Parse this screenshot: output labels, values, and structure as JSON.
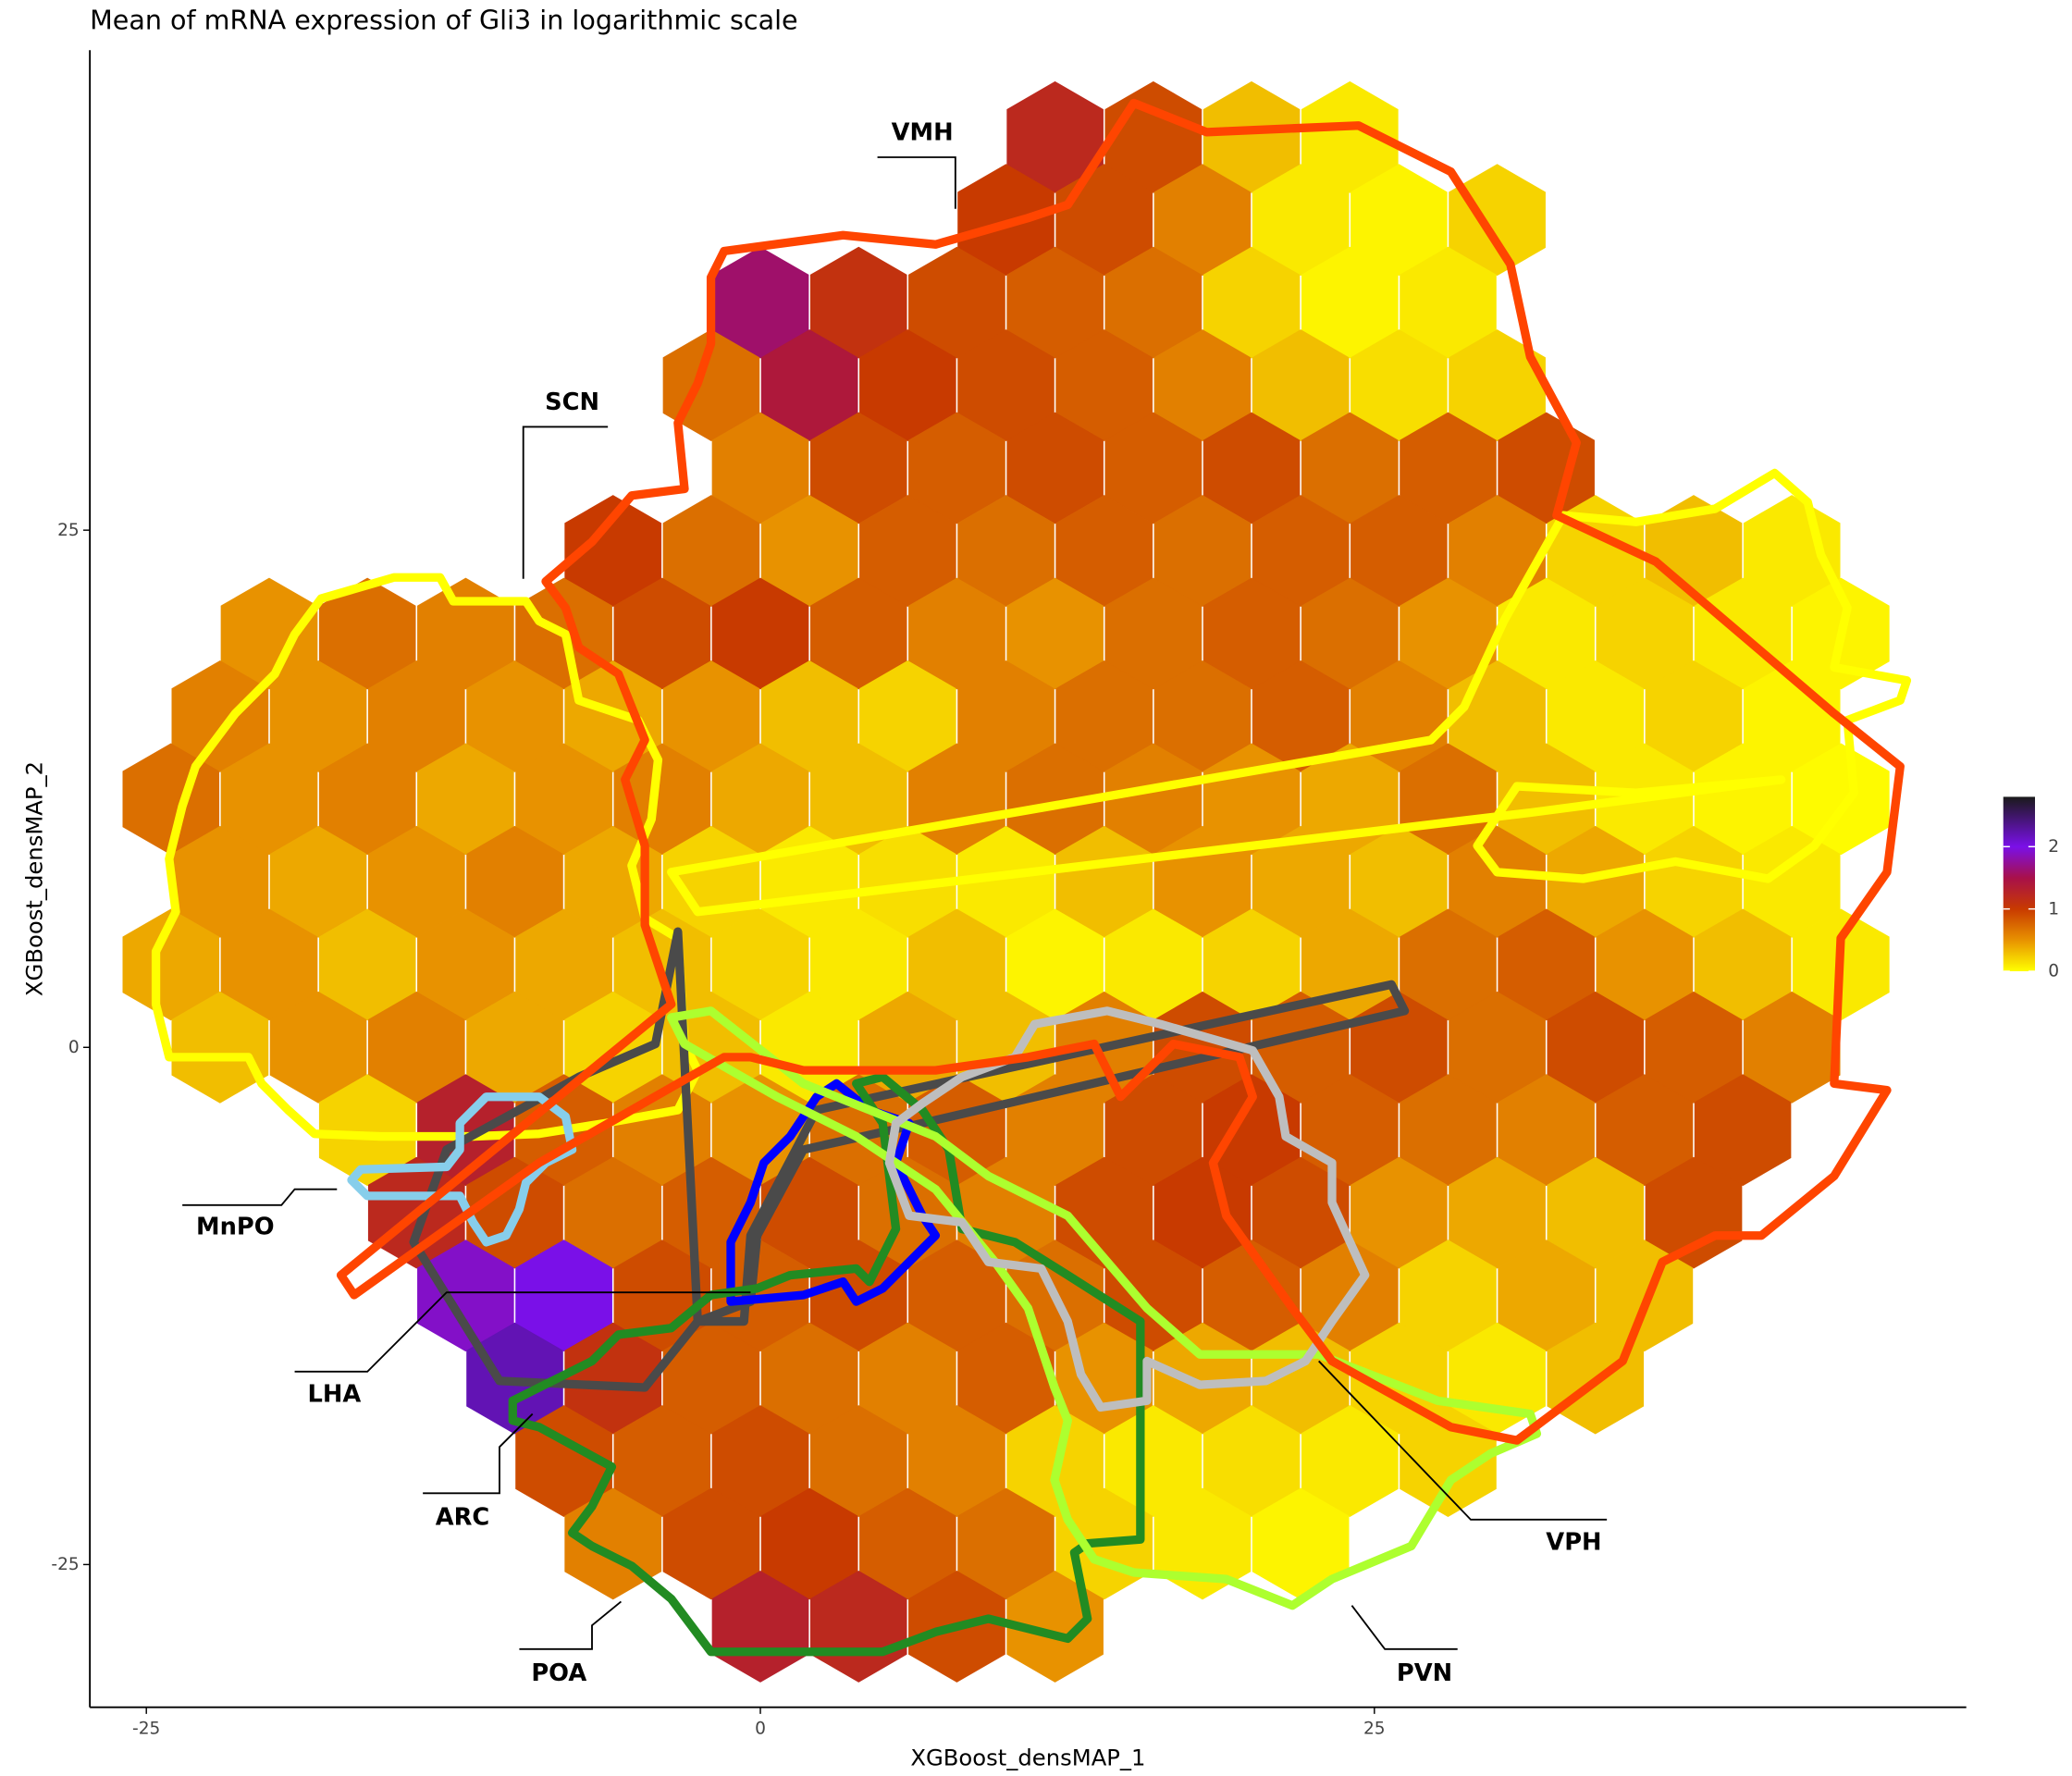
{
  "chart_data": {
    "type": "hexbin",
    "title": "Mean of mRNA expression of Gli3 in logarithmic scale",
    "x_label": "XGBoost_densMAP_1",
    "y_label": "XGBoost_densMAP_2",
    "xlim": [
      -27.3,
      49.1
    ],
    "ylim": [
      -31.9,
      48.2
    ],
    "xticks": [
      -25,
      0,
      25
    ],
    "yticks": [
      -25,
      0,
      25
    ],
    "grid": false,
    "clim": [
      0,
      2.8
    ],
    "cticks": [
      0,
      1,
      2
    ],
    "colorscale": [
      {
        "value": 0,
        "color": "#ffff00"
      },
      {
        "value": 0.5,
        "color": "#e89200"
      },
      {
        "value": 1,
        "color": "#c83a00"
      },
      {
        "value": 1.5,
        "color": "#a8104a"
      },
      {
        "value": 2,
        "color": "#7a10e8"
      },
      {
        "value": 2.8,
        "color": "#1a1a1a"
      }
    ],
    "annotations": [
      "VMH",
      "SCN",
      "MnPO",
      "LHA",
      "ARC",
      "POA",
      "PVN",
      "VPH"
    ],
    "hexbins": [
      {
        "y": 44,
        "x": [
          12,
          16,
          20,
          24
        ],
        "values": [
          1.2,
          0.9,
          0.3,
          0.1
        ]
      },
      {
        "y": 40,
        "x": [
          10,
          14,
          18,
          22,
          26,
          30
        ],
        "values": [
          1.0,
          0.9,
          0.6,
          0.1,
          0.05,
          0.2
        ]
      },
      {
        "y": 36,
        "x": [
          0,
          4,
          8,
          12,
          16,
          20,
          24,
          28
        ],
        "values": [
          1.6,
          1.1,
          0.9,
          0.8,
          0.7,
          0.2,
          0.05,
          0.1
        ]
      },
      {
        "y": 32,
        "x": [
          -2,
          2,
          6,
          10,
          14,
          18,
          22,
          26,
          30
        ],
        "values": [
          0.7,
          1.4,
          1.0,
          0.9,
          0.8,
          0.6,
          0.3,
          0.15,
          0.2
        ]
      },
      {
        "y": 28,
        "x": [
          0,
          4,
          8,
          12,
          16,
          20,
          24,
          28,
          32
        ],
        "values": [
          0.6,
          0.9,
          0.8,
          0.9,
          0.8,
          0.9,
          0.7,
          0.8,
          0.9
        ]
      },
      {
        "y": 24,
        "x": [
          -6,
          -2,
          2,
          6,
          10,
          14,
          18,
          22,
          26,
          30,
          34,
          38,
          42
        ],
        "values": [
          1.0,
          0.7,
          0.5,
          0.8,
          0.7,
          0.8,
          0.7,
          0.8,
          0.8,
          0.6,
          0.2,
          0.3,
          0.1
        ]
      },
      {
        "y": 20,
        "x": [
          -20,
          -16,
          -12,
          -8,
          -4,
          0,
          4,
          8,
          12,
          16,
          20,
          24,
          28,
          32,
          36,
          40,
          44
        ],
        "values": [
          0.5,
          0.7,
          0.6,
          0.7,
          0.9,
          1.0,
          0.8,
          0.6,
          0.5,
          0.7,
          0.8,
          0.7,
          0.5,
          0.1,
          0.2,
          0.1,
          0.05
        ]
      },
      {
        "y": 16,
        "x": [
          -22,
          -18,
          -14,
          -10,
          -6,
          -2,
          2,
          6,
          10,
          14,
          18,
          22,
          26,
          30,
          34,
          38,
          42
        ],
        "values": [
          0.6,
          0.5,
          0.6,
          0.5,
          0.4,
          0.5,
          0.3,
          0.2,
          0.6,
          0.7,
          0.7,
          0.8,
          0.6,
          0.3,
          0.1,
          0.2,
          0.05
        ]
      },
      {
        "y": 12,
        "x": [
          -24,
          -20,
          -16,
          -12,
          -8,
          -4,
          0,
          4,
          8,
          12,
          16,
          20,
          24,
          28,
          32,
          36,
          40,
          44
        ],
        "values": [
          0.7,
          0.5,
          0.6,
          0.4,
          0.5,
          0.6,
          0.4,
          0.3,
          0.6,
          0.7,
          0.6,
          0.5,
          0.4,
          0.7,
          0.3,
          0.1,
          0.05,
          0.02
        ]
      },
      {
        "y": 8,
        "x": [
          -22,
          -18,
          -14,
          -10,
          -6,
          -2,
          2,
          6,
          10,
          14,
          18,
          22,
          26,
          30,
          34,
          38,
          42
        ],
        "values": [
          0.5,
          0.4,
          0.5,
          0.6,
          0.4,
          0.2,
          0.1,
          0.15,
          0.1,
          0.3,
          0.5,
          0.4,
          0.3,
          0.6,
          0.4,
          0.2,
          0.1
        ]
      },
      {
        "y": 4,
        "x": [
          -24,
          -20,
          -16,
          -12,
          -8,
          -4,
          0,
          4,
          8,
          12,
          16,
          20,
          24,
          28,
          32,
          36,
          40,
          44
        ],
        "values": [
          0.4,
          0.5,
          0.3,
          0.5,
          0.4,
          0.3,
          0.2,
          0.1,
          0.3,
          0.05,
          0.1,
          0.2,
          0.4,
          0.7,
          0.8,
          0.5,
          0.3,
          0.1
        ]
      },
      {
        "y": 0,
        "x": [
          -22,
          -18,
          -14,
          -10,
          -6,
          -2,
          2,
          6,
          10,
          14,
          18,
          22,
          26,
          30,
          34,
          38,
          42
        ],
        "values": [
          0.3,
          0.5,
          0.6,
          0.4,
          0.2,
          0.3,
          0.1,
          0.4,
          0.3,
          0.6,
          0.9,
          0.8,
          0.9,
          0.7,
          0.9,
          0.8,
          0.6
        ]
      },
      {
        "y": -4,
        "x": [
          -16,
          -12,
          -8,
          -4,
          0,
          4,
          8,
          12,
          16,
          20,
          24,
          28,
          32,
          36,
          40
        ],
        "values": [
          0.2,
          1.3,
          0.8,
          0.6,
          0.5,
          0.7,
          0.8,
          0.6,
          0.9,
          1.0,
          0.8,
          0.7,
          0.6,
          0.8,
          0.9
        ]
      },
      {
        "y": -8,
        "x": [
          -14,
          -10,
          -6,
          -2,
          2,
          6,
          10,
          14,
          18,
          22,
          26,
          30,
          34,
          38
        ],
        "values": [
          1.2,
          0.9,
          0.7,
          0.8,
          0.9,
          0.7,
          0.6,
          0.9,
          1.0,
          0.9,
          0.5,
          0.4,
          0.3,
          0.9
        ]
      },
      {
        "y": -12,
        "x": [
          -12,
          -8,
          -4,
          0,
          4,
          8,
          12,
          16,
          20,
          24,
          28,
          32,
          36
        ],
        "values": [
          1.9,
          2.0,
          0.9,
          0.8,
          0.9,
          0.8,
          0.7,
          0.9,
          0.8,
          0.6,
          0.2,
          0.4,
          0.3
        ]
      },
      {
        "y": -16,
        "x": [
          -10,
          -6,
          -2,
          2,
          6,
          10,
          14,
          18,
          22,
          26,
          30,
          34
        ],
        "values": [
          2.2,
          1.1,
          0.8,
          0.7,
          0.6,
          0.8,
          0.5,
          0.4,
          0.3,
          0.2,
          0.1,
          0.3
        ]
      },
      {
        "y": -20,
        "x": [
          -8,
          -4,
          0,
          4,
          8,
          12,
          16,
          20,
          24,
          28
        ],
        "values": [
          0.9,
          0.8,
          0.9,
          0.7,
          0.6,
          0.2,
          0.1,
          0.15,
          0.1,
          0.2
        ]
      },
      {
        "y": -24,
        "x": [
          -6,
          -2,
          2,
          6,
          10,
          14,
          18,
          22
        ],
        "values": [
          0.6,
          0.9,
          1.0,
          0.8,
          0.7,
          0.2,
          0.1,
          0.05
        ]
      },
      {
        "y": -28,
        "x": [
          0,
          4,
          8,
          12
        ],
        "values": [
          1.3,
          1.2,
          0.9,
          0.5
        ]
      }
    ]
  }
}
